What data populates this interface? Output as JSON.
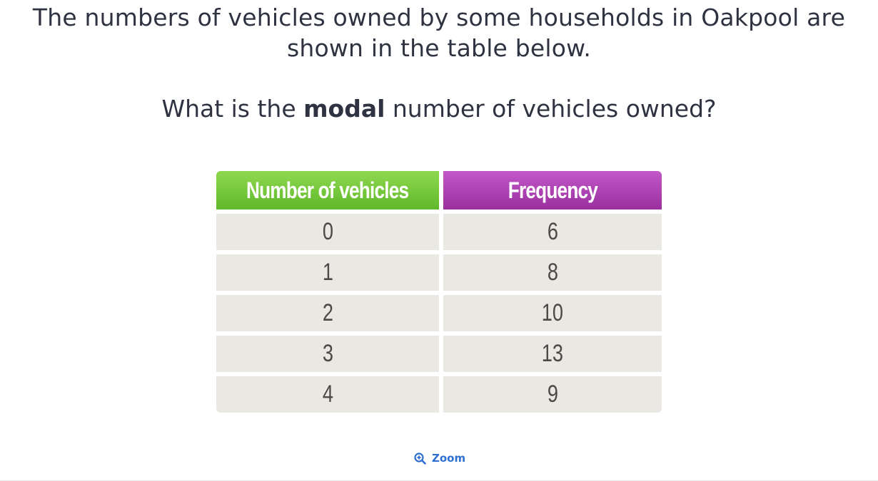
{
  "question": {
    "intro": "The numbers of vehicles owned by some households in Oakpool are shown in the table below.",
    "ask_before": "What is the ",
    "ask_bold": "modal",
    "ask_after": " number of vehicles owned?"
  },
  "table": {
    "headers": [
      "Number of vehicles",
      "Frequency"
    ],
    "header_colors": [
      "#7cc940",
      "#b048b6"
    ],
    "rows": [
      [
        "0",
        "6"
      ],
      [
        "1",
        "8"
      ],
      [
        "2",
        "10"
      ],
      [
        "3",
        "13"
      ],
      [
        "4",
        "9"
      ]
    ]
  },
  "zoom": {
    "label": "Zoom",
    "icon": "zoom-in-icon"
  }
}
